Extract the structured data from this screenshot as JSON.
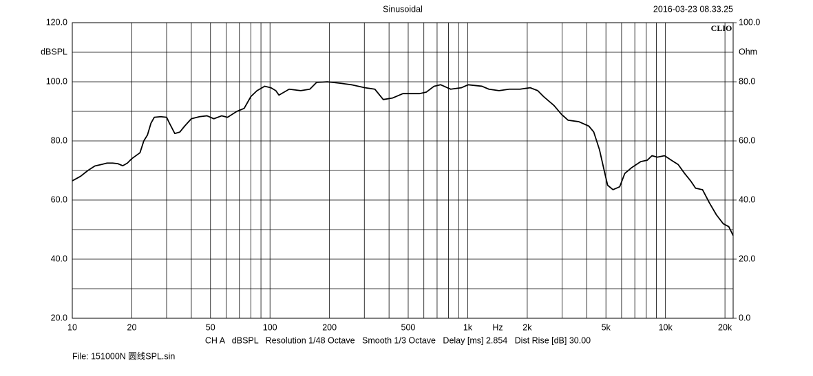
{
  "chart_data": {
    "type": "line",
    "title": "Sinusoidal",
    "timestamp": "2016-03-23 08.33.25",
    "logo": "CLIO",
    "y_label": "dBSPL",
    "y2_label": "Ohm",
    "x_label": "Hz",
    "footer": "CH A   dBSPL   Resolution 1/48 Octave   Smooth 1/3 Octave   Delay [ms] 2.854   Dist Rise [dB] 30.00",
    "file": "File: 151000N 圆线SPL.sin",
    "log_x": true,
    "grid": true,
    "xlim": [
      10,
      22000
    ],
    "ylim": [
      20,
      120
    ],
    "y2lim": [
      0,
      100
    ],
    "xticks": [
      10,
      20,
      50,
      100,
      200,
      500,
      {
        "value": 1000,
        "label": "1k"
      },
      {
        "value": 2000,
        "label": "2k"
      },
      {
        "value": 5000,
        "label": "5k"
      },
      {
        "value": 10000,
        "label": "10k"
      },
      {
        "value": 20000,
        "label": "20k"
      }
    ],
    "x_minor_gridlines": [
      30,
      40,
      60,
      70,
      80,
      90,
      300,
      400,
      600,
      700,
      800,
      900,
      3000,
      4000,
      6000,
      7000,
      8000,
      9000
    ],
    "yticks": [
      {
        "value": 20,
        "label": "20.0"
      },
      {
        "value": 40,
        "label": "40.0"
      },
      {
        "value": 60,
        "label": "60.0"
      },
      {
        "value": 80,
        "label": "80.0"
      },
      {
        "value": 100,
        "label": "100.0"
      },
      {
        "value": 120,
        "label": "120.0"
      }
    ],
    "y_minor_gridlines": [
      30,
      50,
      70,
      90,
      110
    ],
    "y2ticks": [
      {
        "value": 0,
        "label": "0.0"
      },
      {
        "value": 20,
        "label": "20.0"
      },
      {
        "value": 40,
        "label": "40.0"
      },
      {
        "value": 60,
        "label": "60.0"
      },
      {
        "value": 80,
        "label": "80.0"
      },
      {
        "value": 100,
        "label": "100.0"
      }
    ],
    "x": [
      10,
      11,
      12,
      13,
      14,
      15,
      16,
      17,
      18,
      19,
      20,
      22,
      23,
      24,
      25,
      26,
      28,
      30,
      31,
      33,
      35,
      37,
      40,
      44,
      48,
      52,
      57,
      61,
      68,
      74,
      80,
      86,
      94,
      101,
      107,
      111,
      125,
      143,
      159,
      172,
      195,
      227,
      258,
      302,
      339,
      374,
      416,
      470,
      570,
      617,
      676,
      730,
      820,
      930,
      1005,
      1180,
      1280,
      1440,
      1620,
      1840,
      2070,
      2260,
      2420,
      2730,
      2980,
      3220,
      3650,
      4100,
      4340,
      4640,
      4900,
      5100,
      5430,
      5870,
      6230,
      6760,
      7500,
      8100,
      8550,
      9100,
      9900,
      10700,
      11600,
      12500,
      13400,
      14200,
      15400,
      16700,
      18100,
      19600,
      20900,
      22000
    ],
    "series": [
      {
        "color": "#000000",
        "values": [
          66.5,
          68,
          70,
          71.5,
          72,
          72.5,
          72.5,
          72.3,
          71.6,
          72.5,
          74,
          76,
          80,
          82,
          86,
          88,
          88.2,
          88,
          86,
          82.5,
          83,
          85,
          87.5,
          88.2,
          88.5,
          87.5,
          88.5,
          88,
          90,
          91,
          95,
          97,
          98.5,
          98,
          97,
          95.5,
          97.5,
          97,
          97.5,
          99.8,
          100,
          99.5,
          99,
          98,
          97.5,
          94,
          94.5,
          96,
          96,
          96.5,
          98.5,
          99,
          97.5,
          98,
          99,
          98.5,
          97.5,
          97,
          97.5,
          97.5,
          98,
          97,
          95,
          92,
          89,
          87,
          86.5,
          85,
          83,
          77,
          70,
          65,
          63.5,
          64.5,
          69,
          71,
          73,
          73.5,
          75,
          74.5,
          75,
          73.5,
          72,
          69,
          66.5,
          64,
          63.5,
          59,
          55,
          52,
          51,
          48
        ]
      }
    ]
  }
}
